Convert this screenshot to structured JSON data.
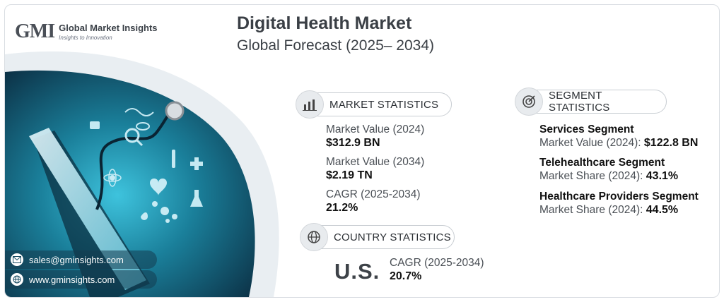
{
  "header": {
    "logo_mark": "GMI",
    "logo_name": "Global Market Insights",
    "logo_tagline": "Insights to Innovation",
    "title": "Digital Health Market",
    "subtitle": "Global Forecast (2025– 2034)"
  },
  "market_statistics": {
    "heading": "MARKET STATISTICS",
    "icon": "bar-chart-icon",
    "items": [
      {
        "label": "Market Value (2024)",
        "value": "$312.9 BN"
      },
      {
        "label": "Market Value (2034)",
        "value": "$2.19 TN"
      },
      {
        "label": "CAGR (2025-2034)",
        "value": "21.2%"
      }
    ]
  },
  "segment_statistics": {
    "heading": "SEGMENT STATISTICS",
    "icon": "target-chart-icon",
    "items": [
      {
        "name": "Services Segment",
        "label": "Market Value (2024):",
        "value": "$122.8 BN"
      },
      {
        "name": "Telehealthcare Segment",
        "label": "Market Share (2024):",
        "value": "43.1%"
      },
      {
        "name": "Healthcare Providers Segment",
        "label": "Market Share (2024):",
        "value": "44.5%"
      }
    ]
  },
  "country_statistics": {
    "heading": "COUNTRY STATISTICS",
    "icon": "globe-icon",
    "country": "U.S.",
    "label": "CAGR (2025-2034)",
    "value": "20.7%"
  },
  "contact": {
    "email": "sales@gminsights.com",
    "website": "www.gminsights.com"
  },
  "colors": {
    "teal_dark": "#0f3d52",
    "teal": "#1a7f9a",
    "accent": "#37b8d4"
  }
}
